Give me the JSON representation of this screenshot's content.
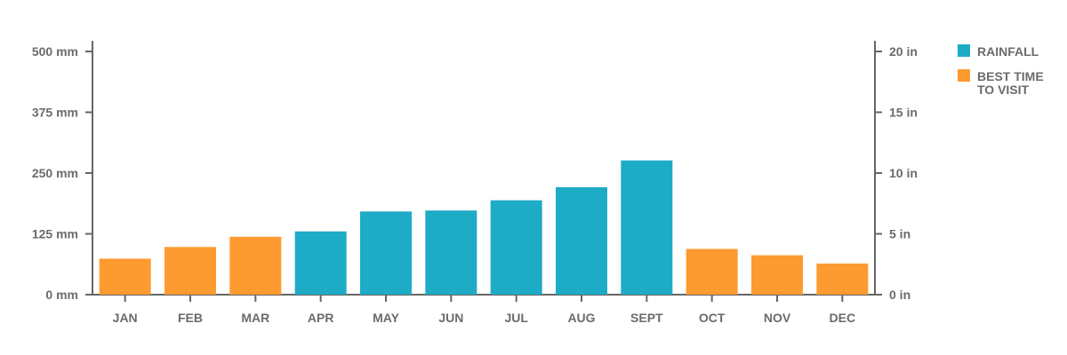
{
  "chart_data": {
    "type": "bar",
    "categories": [
      "JAN",
      "FEB",
      "MAR",
      "APR",
      "MAY",
      "JUN",
      "JUL",
      "AUG",
      "SEPT",
      "OCT",
      "NOV",
      "DEC"
    ],
    "values": [
      74,
      98,
      119,
      130,
      171,
      173,
      194,
      221,
      276,
      94,
      81,
      64
    ],
    "unit": "mm",
    "highlight": [
      true,
      true,
      true,
      false,
      false,
      false,
      false,
      false,
      false,
      true,
      true,
      true
    ],
    "ylim": [
      0,
      500
    ],
    "left_axis": {
      "ticks": [
        0,
        125,
        250,
        375,
        500
      ],
      "labels": [
        "0 mm",
        "125 mm",
        "250 mm",
        "375 mm",
        "500 mm"
      ]
    },
    "right_axis": {
      "ticks": [
        0,
        5,
        10,
        15,
        20
      ],
      "labels": [
        "0 in",
        "5 in",
        "10 in",
        "15 in",
        "20 in"
      ],
      "ylim": [
        0,
        20
      ]
    },
    "grid": false,
    "colors": {
      "rainfall": "#1eabc6",
      "best_time": "#fd9a30",
      "axis": "#666666",
      "text": "#6b6b6b"
    },
    "legend": {
      "placement": "top-right",
      "items": [
        {
          "key": "rainfall",
          "lines": [
            "RAINFALL"
          ]
        },
        {
          "key": "best_time",
          "lines": [
            "BEST TIME",
            "TO VISIT"
          ]
        }
      ]
    }
  }
}
